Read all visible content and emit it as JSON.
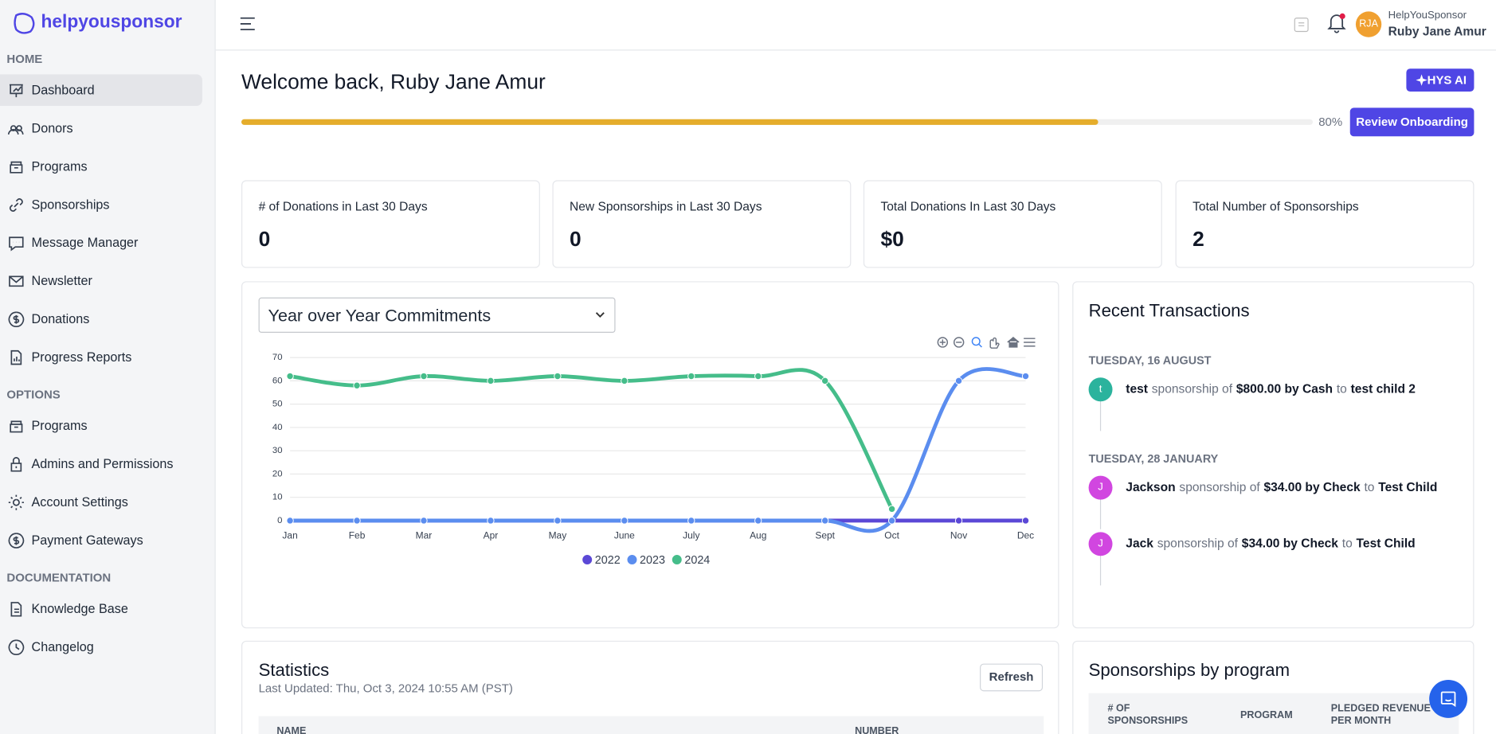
{
  "sidebar": {
    "logo": "helpyousponsor",
    "sections": [
      {
        "title": "HOME",
        "items": [
          "Dashboard",
          "Donors",
          "Programs",
          "Sponsorships",
          "Message Manager",
          "Newsletter",
          "Donations",
          "Progress Reports"
        ]
      },
      {
        "title": "OPTIONS",
        "items": [
          "Programs",
          "Admins and Permissions",
          "Account Settings",
          "Payment Gateways"
        ]
      },
      {
        "title": "DOCUMENTATION",
        "items": [
          "Knowledge Base",
          "Changelog"
        ]
      }
    ]
  },
  "header": {
    "org": "HelpYouSponsor",
    "user": "Ruby Jane Amur",
    "initials": "RJA"
  },
  "welcome": {
    "title": "Welcome back, Ruby Jane Amur",
    "ai_button": "HYS AI",
    "progress": {
      "value": 80,
      "label": "80%"
    },
    "onboarding_button": "Review Onboarding"
  },
  "stats": [
    {
      "label": "# of Donations in Last 30 Days",
      "value": "0"
    },
    {
      "label": "New Sponsorships in Last 30 Days",
      "value": "0"
    },
    {
      "label": "Total Donations In Last 30 Days",
      "value": "$0"
    },
    {
      "label": "Total Number of Sponsorships",
      "value": "2"
    }
  ],
  "chart_select": "Year over Year Commitments",
  "chart_data": {
    "type": "line",
    "categories": [
      "Jan",
      "Feb",
      "Mar",
      "Apr",
      "May",
      "June",
      "July",
      "Aug",
      "Sept",
      "Oct",
      "Nov",
      "Dec"
    ],
    "series": [
      {
        "name": "2022",
        "color": "#5b48d6",
        "values": [
          0,
          0,
          0,
          0,
          0,
          0,
          0,
          0,
          0,
          0,
          0,
          0
        ]
      },
      {
        "name": "2023",
        "color": "#5b8def",
        "values": [
          0,
          0,
          0,
          0,
          0,
          0,
          0,
          0,
          0,
          0,
          60,
          62
        ]
      },
      {
        "name": "2024",
        "color": "#45bd8a",
        "values": [
          62,
          58,
          62,
          60,
          62,
          60,
          62,
          62,
          60,
          5,
          null,
          null
        ]
      }
    ],
    "ylim": [
      0,
      70
    ],
    "yticks": [
      0,
      10,
      20,
      30,
      40,
      50,
      60,
      70
    ],
    "grid": true,
    "legend": "bottom"
  },
  "transactions": {
    "title": "Recent Transactions",
    "groups": [
      {
        "date": "TUESDAY, 16 AUGUST",
        "items": [
          {
            "initial": "t",
            "name": "test",
            "action": "sponsorship of",
            "amount": "$800.00 by Cash",
            "joiner": "to",
            "recipient": "test child 2"
          }
        ]
      },
      {
        "date": "TUESDAY, 28 JANUARY",
        "items": [
          {
            "initial": "J",
            "name": "Jackson",
            "action": "sponsorship of",
            "amount": "$34.00 by Check",
            "joiner": "to",
            "recipient": "Test Child"
          },
          {
            "initial": "J",
            "name": "Jack",
            "action": "sponsorship of",
            "amount": "$34.00 by Check",
            "joiner": "to",
            "recipient": "Test Child"
          }
        ]
      }
    ]
  },
  "statistics": {
    "title": "Statistics",
    "updated": "Last Updated: Thu, Oct 3, 2024 10:55 AM (PST)",
    "refresh": "Refresh",
    "columns": [
      "NAME",
      "NUMBER"
    ]
  },
  "sponsorships_by_program": {
    "title": "Sponsorships by program",
    "columns": [
      "# OF SPONSORSHIPS",
      "PROGRAM",
      "PLEDGED REVENUE PER MONTH"
    ]
  }
}
